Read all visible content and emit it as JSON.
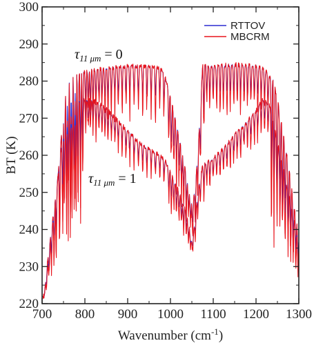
{
  "chart_data": {
    "type": "line",
    "xlabel": "Wavenumber (cm",
    "xlabel_sup": "-1",
    "xlabel_close": ")",
    "ylabel": "BT (K)",
    "xlim": [
      700,
      1300
    ],
    "ylim": [
      220,
      300
    ],
    "xticks": [
      700,
      800,
      900,
      1000,
      1100,
      1200,
      1300
    ],
    "yticks": [
      220,
      230,
      240,
      250,
      260,
      270,
      280,
      290,
      300
    ],
    "grid": false,
    "legend_position": "top-right",
    "series": [
      {
        "name": "RTTOV",
        "color": "#2a2ad0"
      },
      {
        "name": "MBCRM",
        "color": "#e8141c"
      }
    ],
    "annotations": [
      {
        "text": "τ₁₁ μm = 0",
        "x": 890,
        "y": 288
      },
      {
        "text": "τ₁₁ μm = 1",
        "x": 860,
        "y": 256
      }
    ],
    "envelopes": [
      {
        "label": "τ=0",
        "x": [
          705,
          715,
          725,
          735,
          745,
          755,
          765,
          780,
          800,
          850,
          900,
          950,
          975,
          985,
          995,
          1005,
          1015,
          1025,
          1035,
          1045,
          1052,
          1060,
          1070,
          1075,
          1085,
          1100,
          1150,
          1200,
          1220,
          1240,
          1250,
          1260,
          1275,
          1290,
          1300
        ],
        "y": [
          222,
          234,
          243,
          252,
          265,
          276,
          280.5,
          281.5,
          282.5,
          283.5,
          284,
          284,
          283.5,
          282,
          278,
          273,
          268,
          262,
          256,
          249,
          246,
          254,
          272,
          284,
          284,
          284,
          284.5,
          284,
          283,
          280,
          275,
          268,
          258,
          245,
          238
        ]
      },
      {
        "label": "τ=1",
        "x": [
          705,
          715,
          725,
          735,
          745,
          755,
          765,
          780,
          800,
          825,
          850,
          875,
          900,
          925,
          950,
          975,
          990,
          1005,
          1020,
          1035,
          1045,
          1050,
          1055,
          1065,
          1075,
          1085,
          1100,
          1125,
          1150,
          1175,
          1200,
          1215,
          1230,
          1245,
          1260,
          1275,
          1290,
          1300
        ],
        "y": [
          222,
          232,
          242,
          252,
          262,
          269,
          273,
          274.5,
          275,
          274.5,
          272.5,
          269.5,
          266.5,
          263.5,
          261.5,
          260,
          258,
          254,
          250,
          245,
          240,
          236.5,
          240,
          251,
          257,
          258,
          259,
          262,
          265.5,
          268.5,
          272,
          275,
          274,
          266,
          258,
          250,
          242,
          236
        ]
      }
    ],
    "absorption_lines_cm-1": [
      710,
      716,
      722,
      728,
      733,
      741,
      748,
      752,
      757,
      761,
      766,
      770,
      775,
      779,
      784,
      790,
      795,
      802,
      808,
      813,
      819,
      826,
      833,
      840,
      847,
      854,
      862,
      870,
      878,
      887,
      896,
      905,
      915,
      925,
      935,
      945,
      955,
      965,
      975,
      985,
      996,
      1002,
      1008,
      1014,
      1020,
      1026,
      1031,
      1037,
      1042,
      1047,
      1052,
      1058,
      1064,
      1070,
      1078,
      1085,
      1092,
      1100,
      1108,
      1116,
      1124,
      1132,
      1140,
      1148,
      1156,
      1164,
      1172,
      1180,
      1188,
      1196,
      1204,
      1212,
      1220,
      1228,
      1236,
      1242,
      1249,
      1256,
      1262,
      1268,
      1275,
      1281,
      1287,
      1293,
      1298
    ]
  }
}
